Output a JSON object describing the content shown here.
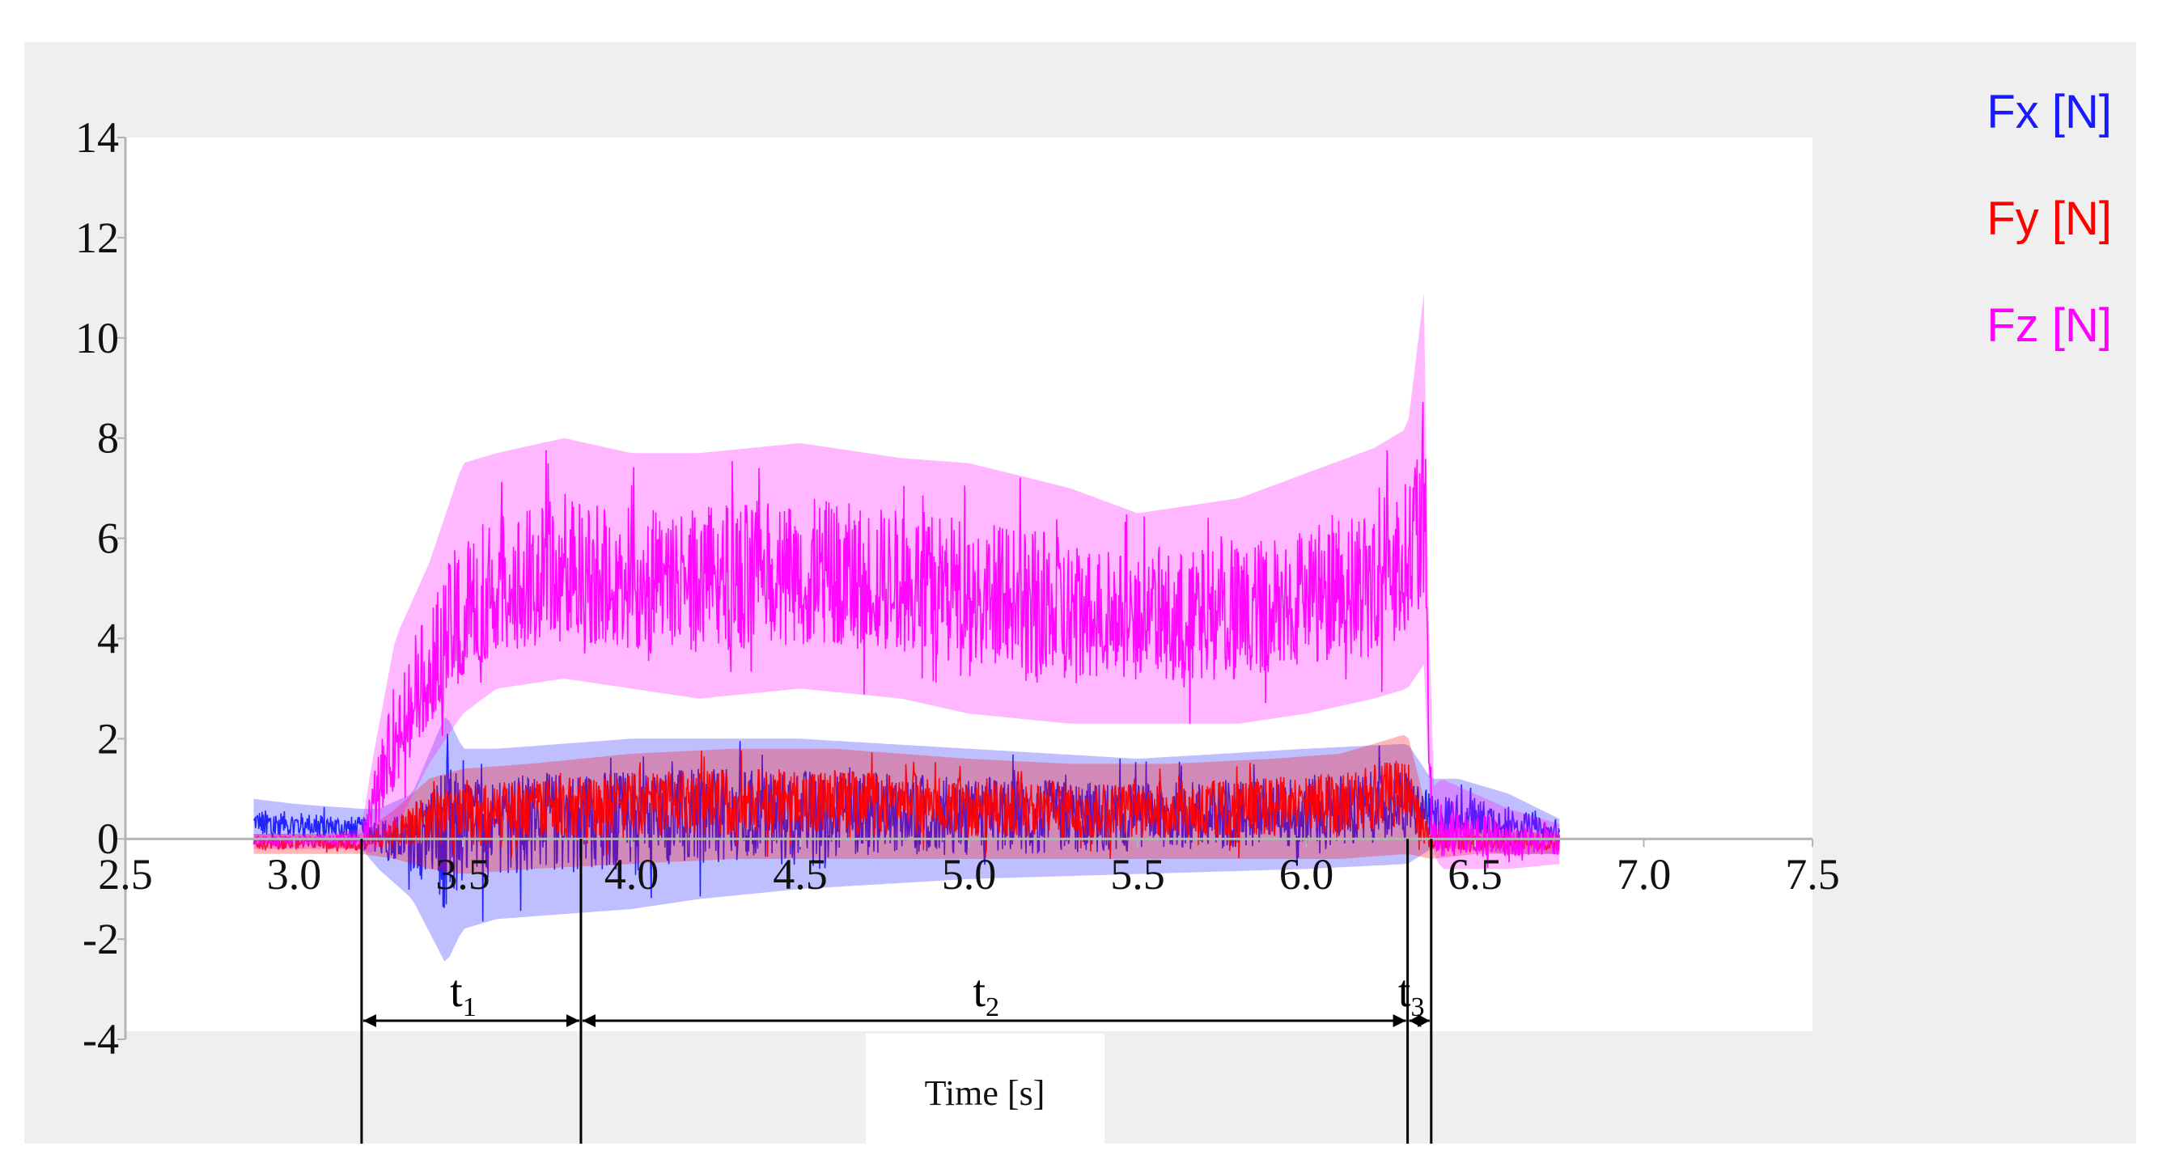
{
  "chart_data": {
    "type": "line",
    "title": "",
    "xlabel": "Time [s]",
    "ylabel": "",
    "xlim": [
      2.5,
      7.5
    ],
    "ylim": [
      -4,
      14
    ],
    "x_ticks": [
      2.5,
      3.0,
      3.5,
      4.0,
      4.5,
      5.0,
      5.5,
      6.0,
      6.5,
      7.0,
      7.5
    ],
    "x_tick_labels": [
      "2.5",
      "3.0",
      "3.5",
      "4.0",
      "4.5",
      "5.0",
      "5.5",
      "6.0",
      "6.5",
      "7.0",
      "7.5"
    ],
    "y_ticks": [
      -4,
      -2,
      0,
      2,
      4,
      6,
      8,
      10,
      12,
      14
    ],
    "y_tick_labels": [
      "-4",
      "-2",
      "0",
      "2",
      "4",
      "6",
      "8",
      "10",
      "12",
      "14"
    ],
    "legend_position": "top-right",
    "grid": false,
    "series": [
      {
        "name": "Fx [N]",
        "color": "#1a1aff",
        "x": [
          2.88,
          3.0,
          3.2,
          3.25,
          3.35,
          3.45,
          3.5,
          3.6,
          3.8,
          4.0,
          4.2,
          4.5,
          5.0,
          5.5,
          6.0,
          6.3,
          6.37,
          6.45,
          6.6,
          6.75
        ],
        "y_mid": [
          0.3,
          0.3,
          0.2,
          0.1,
          0.0,
          0.2,
          0.3,
          0.5,
          0.5,
          0.5,
          0.5,
          0.5,
          0.4,
          0.4,
          0.5,
          0.6,
          0.4,
          0.5,
          0.3,
          0.1
        ],
        "y_max": [
          0.8,
          0.7,
          0.6,
          0.6,
          0.9,
          2.5,
          1.8,
          1.8,
          1.9,
          2.0,
          2.0,
          2.0,
          1.8,
          1.6,
          1.8,
          1.9,
          1.2,
          1.2,
          0.9,
          0.4
        ],
        "y_min": [
          -0.1,
          -0.1,
          -0.2,
          -0.6,
          -1.2,
          -2.5,
          -1.8,
          -1.6,
          -1.5,
          -1.4,
          -1.2,
          -1.0,
          -0.8,
          -0.7,
          -0.6,
          -0.5,
          -0.2,
          -0.2,
          -0.3,
          -0.3
        ]
      },
      {
        "name": "Fy [N]",
        "color": "#ff0000",
        "x": [
          2.88,
          3.2,
          3.3,
          3.4,
          3.5,
          3.7,
          4.0,
          4.3,
          4.6,
          5.0,
          5.3,
          5.6,
          5.9,
          6.1,
          6.3,
          6.37,
          6.5,
          6.75
        ],
        "y_mid": [
          -0.1,
          -0.1,
          0.2,
          0.5,
          0.6,
          0.7,
          0.8,
          0.8,
          0.8,
          0.7,
          0.6,
          0.6,
          0.7,
          0.8,
          0.9,
          0.0,
          -0.1,
          -0.1
        ],
        "y_max": [
          0.1,
          0.1,
          0.6,
          1.2,
          1.4,
          1.5,
          1.7,
          1.8,
          1.8,
          1.6,
          1.5,
          1.5,
          1.6,
          1.7,
          2.1,
          0.2,
          0.2,
          0.1
        ],
        "y_min": [
          -0.3,
          -0.3,
          -0.4,
          -0.6,
          -0.7,
          -0.6,
          -0.5,
          -0.4,
          -0.4,
          -0.4,
          -0.4,
          -0.4,
          -0.4,
          -0.4,
          -0.3,
          -0.4,
          -0.3,
          -0.3
        ]
      },
      {
        "name": "Fz [N]",
        "color": "#ff00ff",
        "x": [
          2.88,
          3.1,
          3.2,
          3.23,
          3.3,
          3.4,
          3.5,
          3.6,
          3.8,
          4.0,
          4.2,
          4.5,
          4.8,
          5.0,
          5.3,
          5.5,
          5.8,
          6.0,
          6.2,
          6.3,
          6.35,
          6.37,
          6.4,
          6.5,
          6.6,
          6.75
        ],
        "y_mid": [
          0.0,
          0.0,
          0.0,
          0.5,
          2.0,
          3.2,
          4.2,
          4.8,
          5.0,
          5.0,
          5.1,
          5.2,
          5.1,
          4.9,
          4.5,
          4.4,
          4.5,
          4.8,
          5.2,
          5.6,
          6.0,
          0.0,
          0.0,
          0.0,
          0.0,
          -0.1
        ],
        "y_max": [
          0.1,
          0.1,
          0.2,
          1.5,
          4.0,
          5.5,
          7.5,
          7.7,
          8.0,
          7.7,
          7.7,
          7.9,
          7.6,
          7.5,
          7.0,
          6.5,
          6.8,
          7.3,
          7.8,
          8.2,
          11.0,
          1.0,
          1.2,
          0.9,
          0.6,
          0.3
        ],
        "y_min": [
          -0.2,
          -0.2,
          -0.2,
          -0.3,
          0.2,
          1.5,
          2.5,
          3.0,
          3.2,
          3.0,
          2.8,
          3.0,
          2.8,
          2.5,
          2.3,
          2.3,
          2.3,
          2.5,
          2.8,
          3.0,
          3.5,
          -0.2,
          -0.6,
          -0.6,
          -0.6,
          -0.5
        ]
      }
    ],
    "phases": [
      {
        "label": "t",
        "subscript": "1",
        "start": 3.2,
        "end": 3.85
      },
      {
        "label": "t",
        "subscript": "2",
        "start": 3.85,
        "end": 6.3
      },
      {
        "label": "t",
        "subscript": "3",
        "start": 6.3,
        "end": 6.37
      }
    ]
  }
}
